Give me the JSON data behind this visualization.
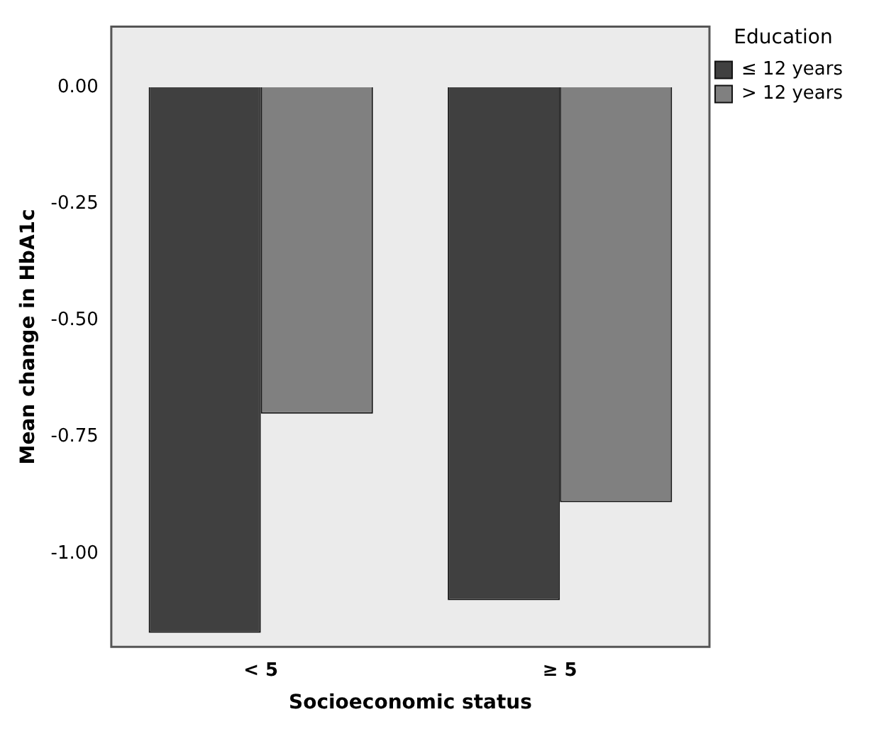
{
  "chart_data": {
    "type": "bar",
    "xlabel": "Socioeconomic status",
    "ylabel": "Mean change in HbA1c",
    "legend_title": "Education",
    "legend": "top right",
    "grid": false,
    "categories": [
      "< 5",
      "≥ 5"
    ],
    "series": [
      {
        "name": "≤ 12 years",
        "color": "#404040",
        "values": [
          -1.17,
          -1.1
        ]
      },
      {
        "name": "> 12 years",
        "color": "#808080",
        "values": [
          -0.7,
          -0.89
        ]
      }
    ],
    "ylim": [
      -1.2,
      0.13
    ],
    "yticks": [
      {
        "value": 0,
        "label": "0.00"
      },
      {
        "value": -0.25,
        "label": "-0.25"
      },
      {
        "value": -0.5,
        "label": "-0.50"
      },
      {
        "value": -0.75,
        "label": "-0.75"
      },
      {
        "value": -1,
        "label": "-1.00"
      }
    ]
  }
}
